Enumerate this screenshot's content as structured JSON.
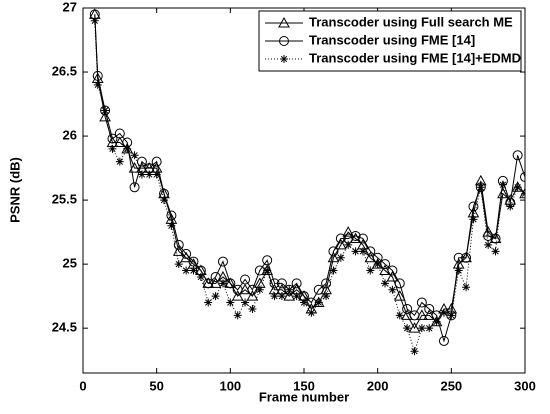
{
  "chart_data": {
    "type": "line",
    "xlabel": "Frame number",
    "ylabel": "PSNR (dB)",
    "x": [
      8,
      10,
      15,
      20,
      25,
      30,
      35,
      40,
      45,
      50,
      55,
      60,
      65,
      70,
      75,
      80,
      85,
      90,
      95,
      100,
      105,
      110,
      115,
      120,
      125,
      130,
      135,
      140,
      145,
      150,
      155,
      160,
      165,
      170,
      175,
      180,
      185,
      190,
      195,
      200,
      205,
      210,
      215,
      220,
      225,
      230,
      235,
      240,
      245,
      250,
      255,
      260,
      265,
      270,
      275,
      280,
      285,
      290,
      295,
      300
    ],
    "series": [
      {
        "name": "Transcoder using Full search ME",
        "color": "#000000",
        "marker": "triangle",
        "linestyle": "solid",
        "values": [
          26.95,
          26.45,
          26.15,
          25.95,
          25.95,
          25.9,
          25.75,
          25.75,
          25.75,
          25.75,
          25.55,
          25.35,
          25.1,
          25.05,
          25.0,
          24.95,
          24.85,
          24.85,
          24.9,
          24.85,
          24.75,
          24.8,
          24.75,
          24.85,
          24.95,
          24.8,
          24.8,
          24.75,
          24.8,
          24.75,
          24.65,
          24.7,
          24.8,
          25.05,
          25.15,
          25.25,
          25.2,
          25.15,
          25.05,
          25.0,
          24.95,
          24.9,
          24.75,
          24.6,
          24.5,
          24.6,
          24.6,
          24.55,
          24.65,
          24.65,
          25.0,
          25.05,
          25.4,
          25.65,
          25.25,
          25.2,
          25.55,
          25.5,
          25.6,
          25.55
        ]
      },
      {
        "name": "Transcoder using FME [14]",
        "color": "#000000",
        "marker": "circle",
        "linestyle": "solid",
        "values": [
          26.95,
          26.47,
          26.2,
          25.98,
          26.02,
          25.95,
          25.6,
          25.8,
          25.75,
          25.8,
          25.55,
          25.38,
          25.15,
          25.08,
          25.02,
          24.95,
          24.85,
          24.9,
          25.02,
          24.85,
          24.8,
          24.88,
          24.8,
          24.95,
          25.03,
          24.85,
          24.85,
          24.8,
          24.85,
          24.75,
          24.7,
          24.8,
          24.85,
          25.1,
          25.2,
          25.2,
          25.22,
          25.2,
          25.1,
          25.05,
          25.0,
          24.95,
          24.85,
          24.65,
          24.6,
          24.7,
          24.65,
          24.6,
          24.4,
          24.6,
          25.05,
          25.05,
          25.45,
          25.6,
          25.22,
          25.2,
          25.65,
          25.48,
          25.85,
          25.68
        ]
      },
      {
        "name": "Transcoder using FME [14]+EDMD",
        "color": "#000000",
        "marker": "star",
        "linestyle": "dotted",
        "values": [
          26.9,
          26.4,
          26.2,
          25.9,
          25.8,
          25.9,
          25.85,
          25.7,
          25.7,
          25.7,
          25.5,
          25.3,
          25.0,
          24.95,
          24.95,
          24.9,
          24.7,
          24.75,
          24.85,
          24.7,
          24.6,
          24.7,
          24.65,
          24.8,
          24.95,
          24.75,
          24.75,
          24.8,
          24.75,
          24.7,
          24.62,
          24.7,
          24.75,
          24.95,
          25.05,
          25.15,
          25.1,
          25.1,
          24.95,
          25.0,
          24.85,
          24.8,
          24.6,
          24.5,
          24.32,
          24.5,
          24.5,
          24.55,
          24.62,
          24.6,
          24.95,
          24.82,
          25.35,
          25.6,
          25.15,
          25.1,
          25.62,
          25.45,
          25.6,
          25.55
        ]
      }
    ],
    "xlim": [
      0,
      300
    ],
    "xticks": [
      0,
      50,
      100,
      150,
      200,
      250,
      300
    ],
    "ylim": [
      24.15,
      27
    ],
    "yticks": [
      24.5,
      25,
      25.5,
      26,
      26.5,
      27
    ],
    "grid": false,
    "legend": "upper right"
  }
}
